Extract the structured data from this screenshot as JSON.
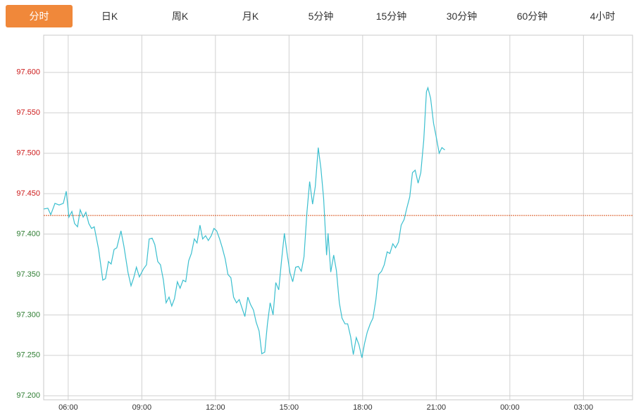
{
  "tabs": [
    "分时",
    "日K",
    "周K",
    "月K",
    "5分钟",
    "15分钟",
    "30分钟",
    "60分钟",
    "4小时"
  ],
  "active_tab": 0,
  "chart_data": {
    "type": "line",
    "color": "#3bbfcf",
    "reference": 97.423,
    "reference_color": "#d9531e",
    "up_color": "#cc1a1a",
    "down_color": "#2e7d32",
    "grid": true,
    "xlim": [
      5,
      29
    ],
    "xticks": [
      {
        "value": 6,
        "label": "06:00"
      },
      {
        "value": 9,
        "label": "09:00"
      },
      {
        "value": 12,
        "label": "12:00"
      },
      {
        "value": 15,
        "label": "15:00"
      },
      {
        "value": 18,
        "label": "18:00"
      },
      {
        "value": 21,
        "label": "21:00"
      },
      {
        "value": 24,
        "label": "00:00"
      },
      {
        "value": 27,
        "label": "03:00"
      }
    ],
    "ylim": [
      97.195,
      97.646
    ],
    "yticks": [
      {
        "value": 97.2,
        "label": "97.200"
      },
      {
        "value": 97.25,
        "label": "97.250"
      },
      {
        "value": 97.3,
        "label": "97.300"
      },
      {
        "value": 97.35,
        "label": "97.350"
      },
      {
        "value": 97.4,
        "label": "97.400"
      },
      {
        "value": 97.45,
        "label": "97.450"
      },
      {
        "value": 97.5,
        "label": "97.500"
      },
      {
        "value": 97.55,
        "label": "97.550"
      },
      {
        "value": 97.6,
        "label": "97.600"
      }
    ],
    "x": [
      5.0,
      5.17,
      5.29,
      5.46,
      5.63,
      5.8,
      5.92,
      6.03,
      6.15,
      6.26,
      6.38,
      6.49,
      6.61,
      6.72,
      6.84,
      6.95,
      7.06,
      7.24,
      7.41,
      7.52,
      7.64,
      7.75,
      7.87,
      7.98,
      8.15,
      8.27,
      8.44,
      8.56,
      8.67,
      8.78,
      8.9,
      9.07,
      9.19,
      9.3,
      9.42,
      9.53,
      9.65,
      9.76,
      9.88,
      9.99,
      10.11,
      10.22,
      10.33,
      10.45,
      10.56,
      10.68,
      10.79,
      10.91,
      11.02,
      11.14,
      11.25,
      11.37,
      11.48,
      11.6,
      11.71,
      11.83,
      11.94,
      12.05,
      12.17,
      12.28,
      12.4,
      12.51,
      12.63,
      12.74,
      12.86,
      12.97,
      13.09,
      13.2,
      13.32,
      13.43,
      13.55,
      13.66,
      13.78,
      13.89,
      14.01,
      14.12,
      14.23,
      14.35,
      14.46,
      14.58,
      14.69,
      14.81,
      14.92,
      15.04,
      15.15,
      15.27,
      15.38,
      15.5,
      15.61,
      15.73,
      15.84,
      15.96,
      16.07,
      16.19,
      16.3,
      16.41,
      16.53,
      16.59,
      16.7,
      16.82,
      16.93,
      17.05,
      17.16,
      17.28,
      17.39,
      17.51,
      17.62,
      17.74,
      17.85,
      17.97,
      18.08,
      18.19,
      18.31,
      18.42,
      18.54,
      18.65,
      18.77,
      18.88,
      19.0,
      19.11,
      19.23,
      19.34,
      19.46,
      19.57,
      19.69,
      19.8,
      19.92,
      20.03,
      20.14,
      20.26,
      20.37,
      20.49,
      20.6,
      20.66,
      20.77,
      20.89,
      21.0,
      21.12,
      21.23,
      21.35
    ],
    "values": [
      97.431,
      97.432,
      97.424,
      97.438,
      97.436,
      97.438,
      97.453,
      97.421,
      97.428,
      97.413,
      97.409,
      97.43,
      97.421,
      97.427,
      97.413,
      97.407,
      97.409,
      97.381,
      97.343,
      97.345,
      97.366,
      97.363,
      97.381,
      97.383,
      97.404,
      97.385,
      97.352,
      97.336,
      97.346,
      97.359,
      97.347,
      97.357,
      97.362,
      97.394,
      97.395,
      97.387,
      97.366,
      97.362,
      97.343,
      97.315,
      97.322,
      97.311,
      97.32,
      97.341,
      97.333,
      97.343,
      97.341,
      97.367,
      97.376,
      97.394,
      97.389,
      97.411,
      97.394,
      97.398,
      97.392,
      97.398,
      97.407,
      97.404,
      97.394,
      97.383,
      97.369,
      97.35,
      97.346,
      97.322,
      97.315,
      97.319,
      97.308,
      97.298,
      97.322,
      97.313,
      97.306,
      97.291,
      97.28,
      97.252,
      97.254,
      97.289,
      97.315,
      97.3,
      97.34,
      97.331,
      97.366,
      97.401,
      97.376,
      97.352,
      97.341,
      97.359,
      97.36,
      97.354,
      97.372,
      97.427,
      97.465,
      97.437,
      97.459,
      97.507,
      97.481,
      97.444,
      97.374,
      97.401,
      97.353,
      97.374,
      97.355,
      97.315,
      97.296,
      97.289,
      97.289,
      97.273,
      97.251,
      97.272,
      97.263,
      97.247,
      97.265,
      97.279,
      97.289,
      97.296,
      97.319,
      97.35,
      97.354,
      97.362,
      97.378,
      97.376,
      97.388,
      97.383,
      97.39,
      97.411,
      97.418,
      97.432,
      97.446,
      97.476,
      97.479,
      97.463,
      97.476,
      97.516,
      97.576,
      97.581,
      97.568,
      97.537,
      97.52,
      97.5,
      97.507,
      97.504
    ]
  }
}
